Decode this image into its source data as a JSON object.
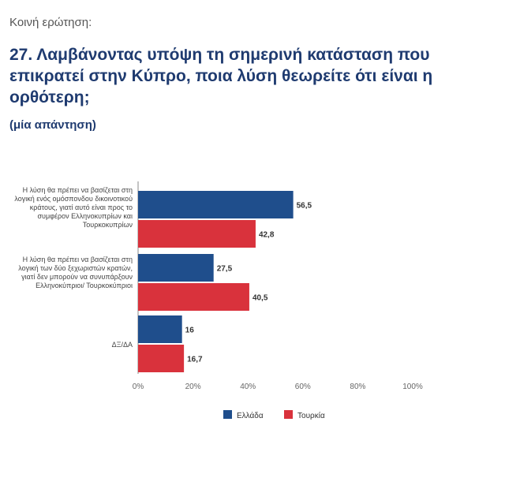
{
  "header": {
    "kicker": "Κοινή ερώτηση:",
    "question": "27. Λαμβάνοντας υπόψη τη σημερινή κατάσταση που επικρατεί στην Κύπρο, ποια λύση θεωρείτε ότι είναι η ορθότερη;",
    "note": "(μία απάντηση)"
  },
  "colors": {
    "greece": "#1f4e8c",
    "turkey": "#d9323c"
  },
  "chart_data": {
    "type": "bar",
    "orientation": "horizontal",
    "categories": [
      "Η λύση θα πρέπει να βασίζεται στη λογική ενός ομόσπονδου δικοινοτικού κράτους, γιατί αυτό είναι προς το συμφέρον Ελληνοκυπρίων και Τουρκοκυπρίων",
      "Η λύση θα πρέπει να βασίζεται στη λογική των δύο ξεχωριστών κρατών, γιατί δεν μπορούν να συνυπάρξουν Ελληνοκύπριοι/ Τουρκοκύπριοι",
      "ΔΞ/ΔΑ"
    ],
    "series": [
      {
        "name": "Ελλάδα",
        "values": [
          56.5,
          27.5,
          16
        ],
        "labels": [
          "56,5",
          "27,5",
          "16"
        ]
      },
      {
        "name": "Τουρκία",
        "values": [
          42.8,
          40.5,
          16.7
        ],
        "labels": [
          "42,8",
          "40,5",
          "16,7"
        ]
      }
    ],
    "xlim": [
      0,
      100
    ],
    "xticks": [
      "0%",
      "20%",
      "40%",
      "60%",
      "80%",
      "100%"
    ],
    "legend": "bottom"
  }
}
